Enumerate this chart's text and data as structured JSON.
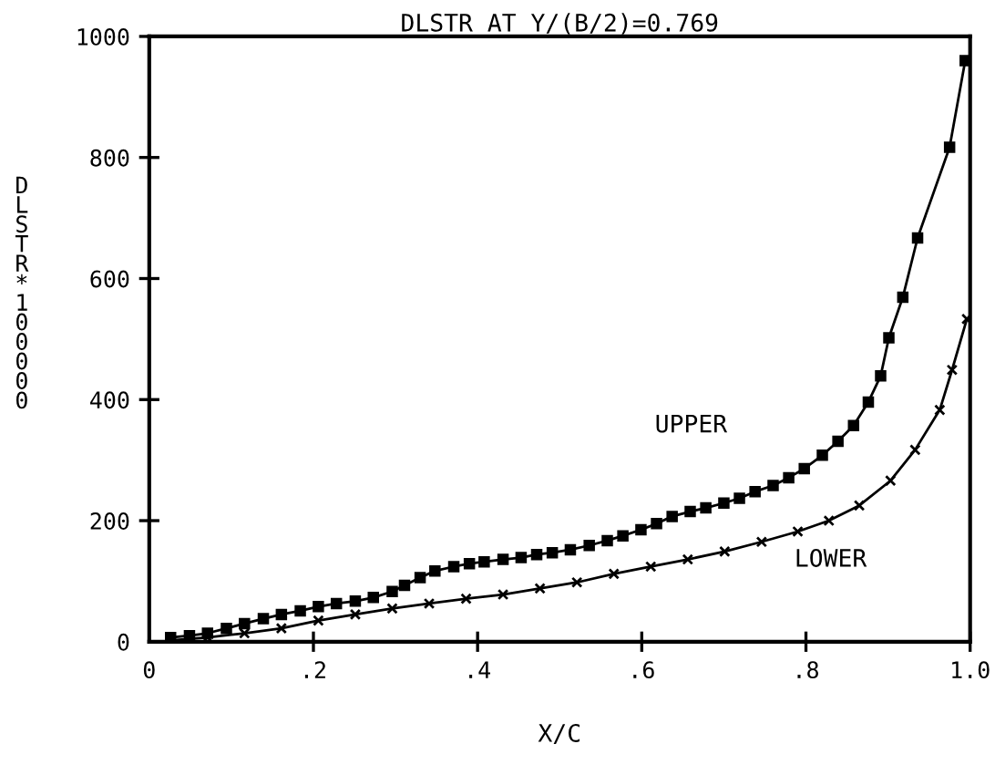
{
  "chart_data": {
    "type": "line",
    "title": "DLSTR AT Y/(B/2)=0.769",
    "xlabel": "X/C",
    "ylabel": "DLSTR * 100000",
    "xlim": [
      0,
      1.0
    ],
    "ylim": [
      0,
      1000
    ],
    "xticks": [
      0,
      {
        "value": 0.2,
        "label": ".2"
      },
      {
        "value": 0.4,
        "label": ".4"
      },
      {
        "value": 0.6,
        "label": ".6"
      },
      {
        "value": 0.8,
        "label": ".8"
      },
      {
        "value": 1.0,
        "label": "1.0"
      }
    ],
    "yticks": [
      0,
      200,
      400,
      600,
      800,
      1000
    ],
    "grid": false,
    "legend": false,
    "line_style": "solid",
    "series": [
      {
        "color": "#000000",
        "marker": "square",
        "x": [
          0.026,
          0.049,
          0.071,
          0.094,
          0.116,
          0.139,
          0.161,
          0.184,
          0.206,
          0.228,
          0.251,
          0.273,
          0.296,
          0.311,
          0.33,
          0.348,
          0.371,
          0.39,
          0.408,
          0.431,
          0.453,
          0.472,
          0.491,
          0.513,
          0.536,
          0.558,
          0.577,
          0.599,
          0.618,
          0.637,
          0.659,
          0.678,
          0.7,
          0.719,
          0.738,
          0.76,
          0.779,
          0.798,
          0.82,
          0.839,
          0.858,
          0.876,
          0.891,
          0.901,
          0.918,
          0.936,
          0.975,
          0.994
        ],
        "values": [
          7,
          10,
          14,
          22,
          30,
          38,
          45,
          51,
          58,
          63,
          67,
          73,
          83,
          93,
          106,
          117,
          124,
          129,
          132,
          136,
          139,
          144,
          147,
          152,
          159,
          167,
          175,
          185,
          195,
          207,
          215,
          221,
          229,
          237,
          248,
          258,
          271,
          286,
          308,
          331,
          357,
          396,
          439,
          502,
          569,
          667,
          817,
          960
        ]
      },
      {
        "color": "#000000",
        "marker": "cross",
        "x": [
          0.026,
          0.071,
          0.116,
          0.161,
          0.206,
          0.251,
          0.296,
          0.341,
          0.386,
          0.431,
          0.476,
          0.521,
          0.566,
          0.611,
          0.656,
          0.701,
          0.746,
          0.79,
          0.828,
          0.865,
          0.903,
          0.933,
          0.963,
          0.978,
          0.996
        ],
        "values": [
          2,
          7,
          14,
          22,
          35,
          45,
          55,
          63,
          71,
          78,
          88,
          98,
          112,
          124,
          136,
          149,
          165,
          182,
          200,
          225,
          266,
          317,
          383,
          449,
          533
        ]
      }
    ],
    "annotations": [
      "UPPER",
      "LOWER"
    ]
  }
}
